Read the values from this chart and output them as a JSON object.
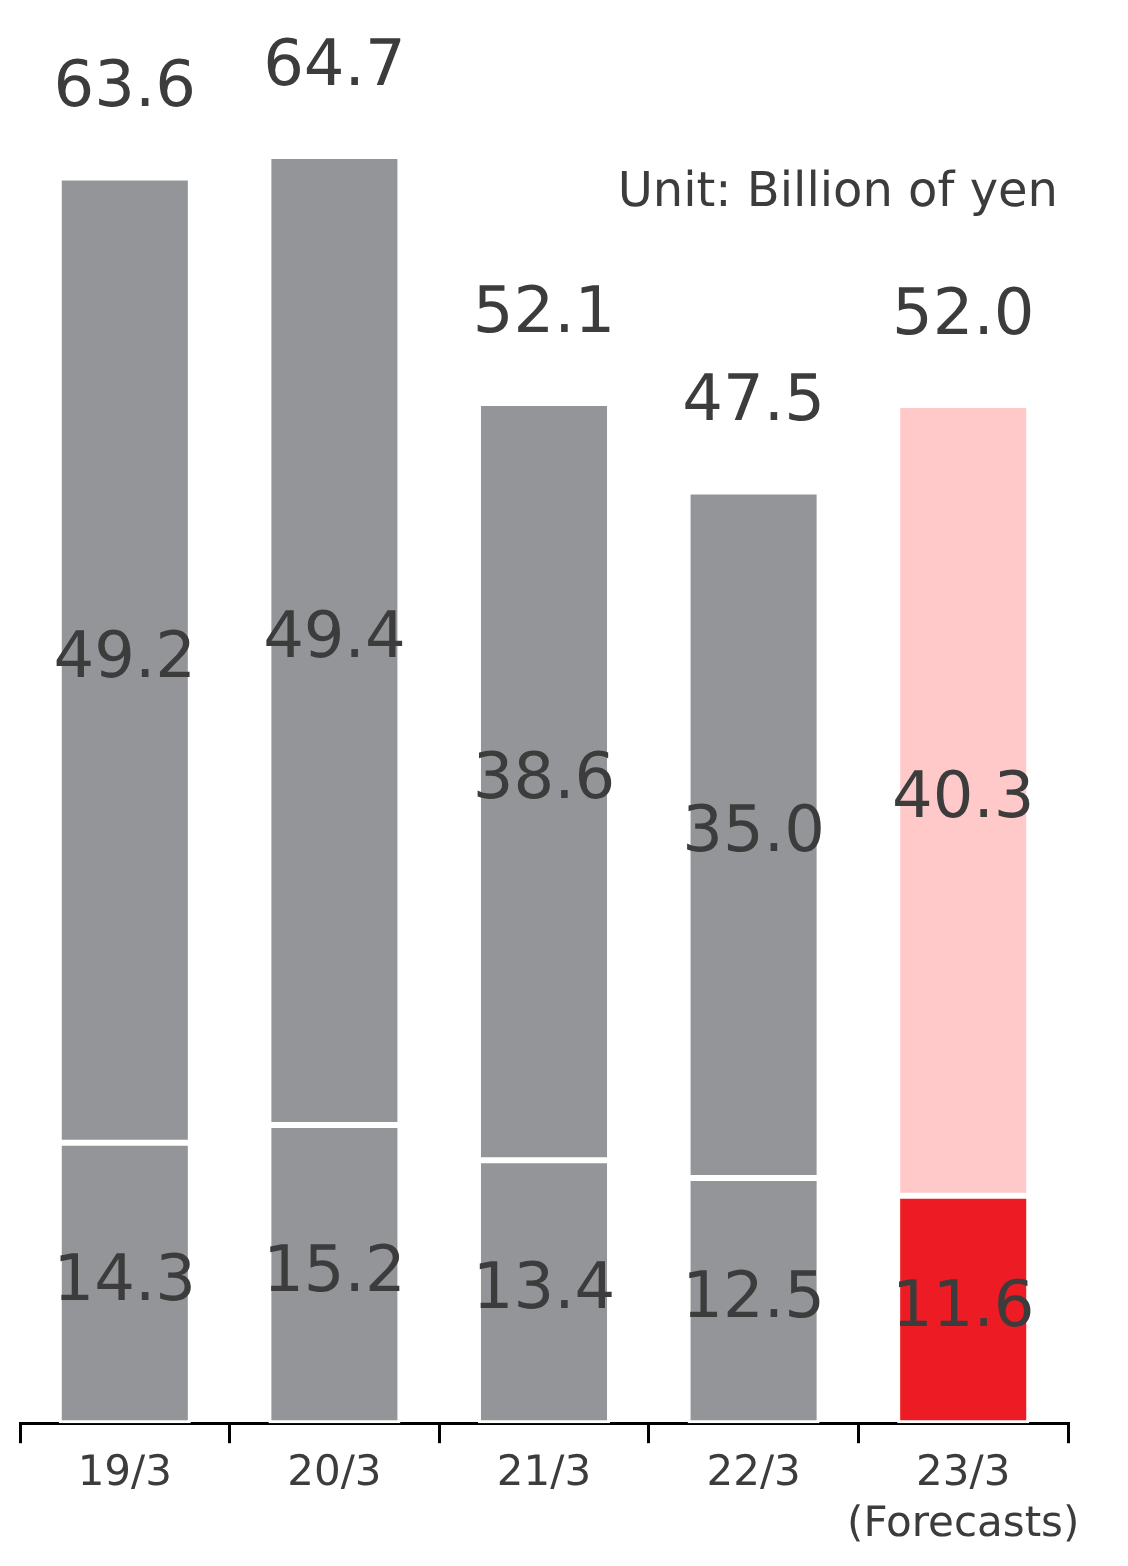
{
  "chart_data": {
    "type": "bar",
    "stacked": true,
    "categories": [
      "19/3",
      "20/3",
      "21/3",
      "22/3",
      "23/3\n(Forecasts)"
    ],
    "series": [
      {
        "colors": [
          "#939598",
          "#939598",
          "#939598",
          "#939598",
          "#ed1c24"
        ],
        "values": [
          14.3,
          15.2,
          13.4,
          12.5,
          11.6
        ],
        "value_labels": [
          "14.3",
          "15.2",
          "13.4",
          "12.5",
          "11.6"
        ]
      },
      {
        "colors": [
          "#939598",
          "#939598",
          "#939598",
          "#939598",
          "#ffc9c9"
        ],
        "values": [
          49.2,
          49.4,
          38.6,
          35.0,
          40.3
        ],
        "value_labels": [
          "49.2",
          "49.4",
          "38.6",
          "35.0",
          "40.3"
        ]
      }
    ],
    "totals": [
      "63.6",
      "64.7",
      "52.1",
      "47.5",
      "52.0"
    ],
    "annotations": [
      "Unit: Billion of yen"
    ],
    "legend": false,
    "grid": false
  }
}
